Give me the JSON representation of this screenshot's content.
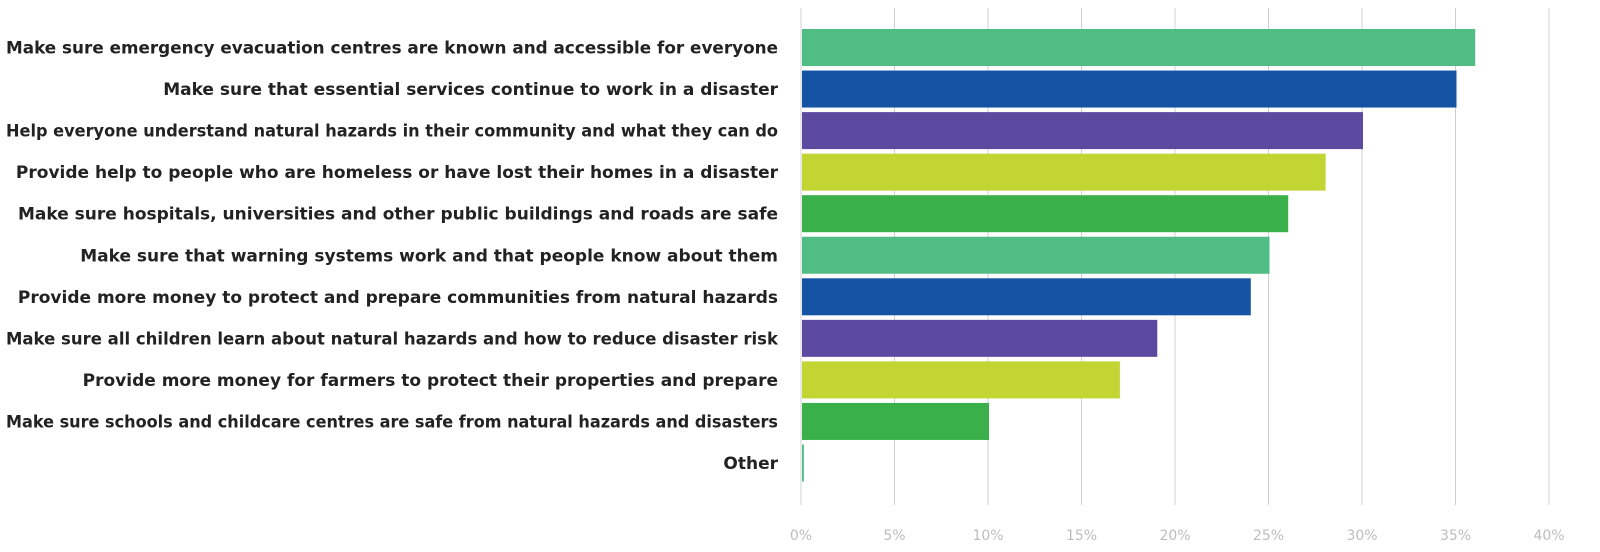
{
  "chart_data": {
    "type": "bar",
    "orientation": "horizontal",
    "title": "",
    "xlabel": "",
    "ylabel": "",
    "xlim": [
      0,
      40
    ],
    "x_ticks": [
      0,
      5,
      10,
      15,
      20,
      25,
      30,
      35,
      40
    ],
    "x_tick_labels": [
      "0%",
      "5%",
      "10%",
      "15%",
      "20%",
      "25%",
      "30%",
      "35%",
      "40%"
    ],
    "grid": "vertical",
    "legend": "none",
    "categories": [
      "Make sure emergency evacuation centres are known and accessible for everyone",
      "Make sure that essential services continue to work in a disaster",
      "Help everyone understand natural hazards in their community and what they can do",
      "Provide help to people who are homeless or have lost their homes in a disaster",
      "Make sure hospitals, universities and other public buildings and roads are safe",
      "Make sure that warning systems work and that people know about them",
      "Provide more money to protect and prepare communities from natural hazards",
      "Make sure all children learn about natural hazards and how to reduce disaster risk",
      "Provide more money for farmers to protect their properties and prepare",
      "Make sure schools and childcare centres are safe from natural hazards and disasters",
      "Other"
    ],
    "values": [
      36,
      35,
      30,
      28,
      26,
      25,
      24,
      19,
      17,
      10,
      0.1
    ],
    "colors": [
      "#50be84",
      "#1553a5",
      "#5c4aa0",
      "#c2d532",
      "#39b04a",
      "#50be84",
      "#1553a5",
      "#5c4aa0",
      "#c2d532",
      "#39b04a",
      "#50be84"
    ]
  }
}
